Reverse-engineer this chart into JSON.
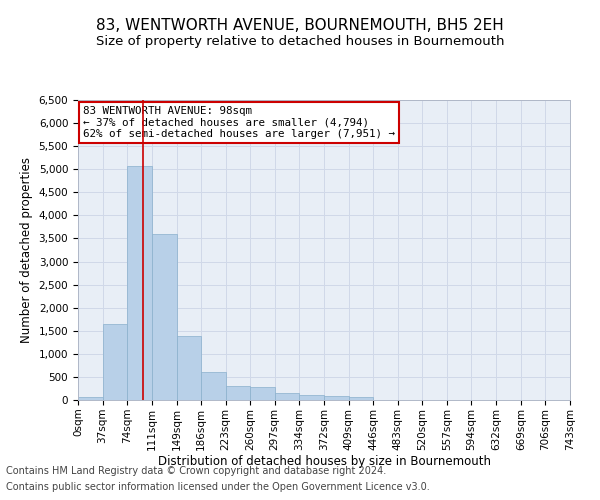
{
  "title": "83, WENTWORTH AVENUE, BOURNEMOUTH, BH5 2EH",
  "subtitle": "Size of property relative to detached houses in Bournemouth",
  "xlabel": "Distribution of detached houses by size in Bournemouth",
  "ylabel": "Number of detached properties",
  "footnote1": "Contains HM Land Registry data © Crown copyright and database right 2024.",
  "footnote2": "Contains public sector information licensed under the Open Government Licence v3.0.",
  "annotation_line1": "83 WENTWORTH AVENUE: 98sqm",
  "annotation_line2": "← 37% of detached houses are smaller (4,794)",
  "annotation_line3": "62% of semi-detached houses are larger (7,951) →",
  "bar_color": "#b8d0e8",
  "bar_edge_color": "#8ab0cc",
  "grid_color": "#d0d8e8",
  "background_color": "#e8eef6",
  "property_line_x": 98,
  "bin_edges": [
    0,
    37,
    74,
    111,
    149,
    186,
    223,
    260,
    297,
    334,
    372,
    409,
    446,
    483,
    520,
    557,
    594,
    632,
    669,
    706,
    743
  ],
  "bar_values": [
    70,
    1650,
    5060,
    3600,
    1390,
    610,
    300,
    290,
    150,
    110,
    80,
    55,
    0,
    0,
    0,
    0,
    0,
    0,
    0,
    0
  ],
  "xlim": [
    0,
    743
  ],
  "ylim": [
    0,
    6500
  ],
  "yticks": [
    0,
    500,
    1000,
    1500,
    2000,
    2500,
    3000,
    3500,
    4000,
    4500,
    5000,
    5500,
    6000,
    6500
  ],
  "xtick_labels": [
    "0sqm",
    "37sqm",
    "74sqm",
    "111sqm",
    "149sqm",
    "186sqm",
    "223sqm",
    "260sqm",
    "297sqm",
    "334sqm",
    "372sqm",
    "409sqm",
    "446sqm",
    "483sqm",
    "520sqm",
    "557sqm",
    "594sqm",
    "632sqm",
    "669sqm",
    "706sqm",
    "743sqm"
  ],
  "annotation_box_color": "#ffffff",
  "annotation_box_edgecolor": "#cc0000",
  "title_fontsize": 11,
  "subtitle_fontsize": 9.5,
  "axis_label_fontsize": 8.5,
  "tick_fontsize": 7.5,
  "annotation_fontsize": 7.8,
  "footnote_fontsize": 7
}
